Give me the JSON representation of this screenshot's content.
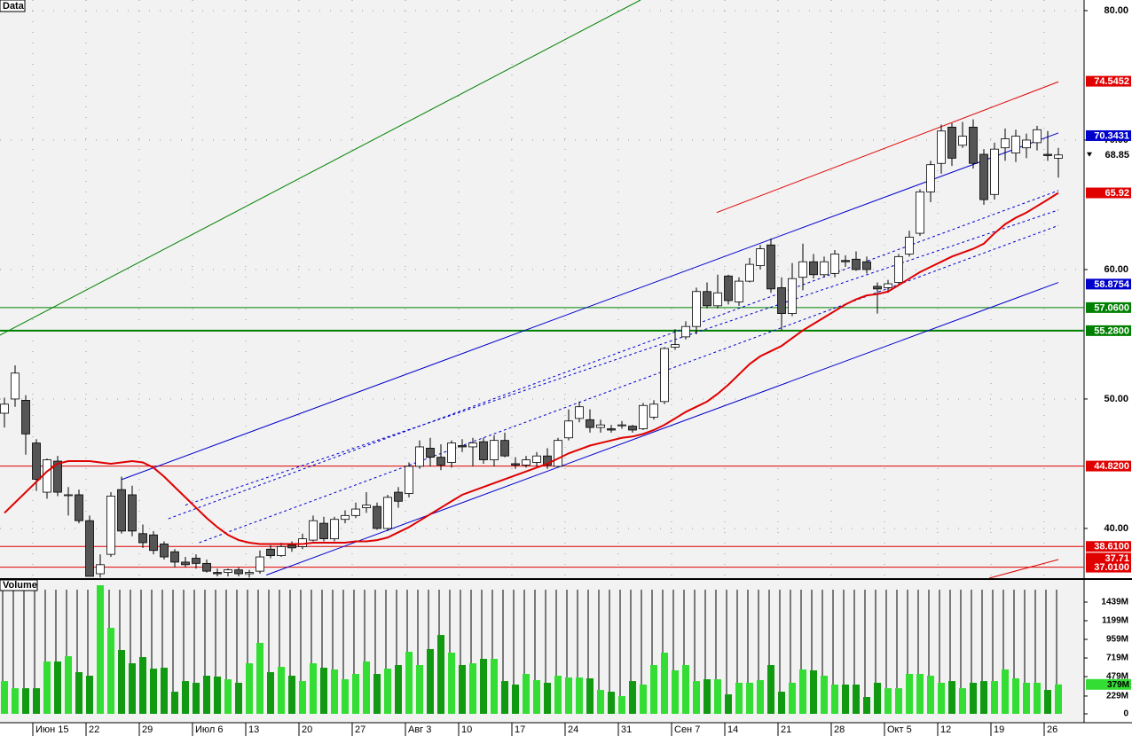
{
  "chart_data": {
    "type": "candlestick",
    "title": "Data",
    "volume_title": "Volume",
    "categories": [
      null,
      null,
      null,
      "Июн 15",
      null,
      null,
      null,
      null,
      "22",
      null,
      null,
      null,
      null,
      "29",
      null,
      null,
      null,
      null,
      "Июл 6",
      null,
      null,
      null,
      null,
      "13",
      null,
      null,
      null,
      null,
      "20",
      null,
      null,
      null,
      null,
      "27",
      null,
      null,
      null,
      null,
      "Авг 3",
      null,
      null,
      null,
      null,
      "10",
      null,
      null,
      null,
      null,
      "17",
      null,
      null,
      null,
      null,
      "24",
      null,
      null,
      null,
      null,
      "31",
      null,
      null,
      null,
      null,
      "Сен 7",
      null,
      null,
      null,
      null,
      "14",
      null,
      null,
      null,
      null,
      "21",
      null,
      null,
      null,
      null,
      "28",
      null,
      null,
      null,
      null,
      "Окт 5",
      null,
      null,
      null,
      null,
      "12",
      null,
      null,
      null,
      null,
      "19",
      null,
      null,
      null,
      null,
      "26",
      null
    ],
    "ohlc": [
      [
        48.9,
        50.1,
        47.8,
        49.6
      ],
      [
        50.0,
        52.6,
        49.4,
        52.0
      ],
      [
        49.9,
        50.3,
        45.7,
        47.3
      ],
      [
        46.6,
        46.9,
        42.9,
        43.8
      ],
      [
        42.8,
        45.4,
        42.3,
        45.3
      ],
      [
        45.2,
        45.6,
        42.5,
        42.8
      ],
      [
        42.6,
        43.2,
        41.0,
        42.6
      ],
      [
        42.6,
        43.0,
        40.4,
        40.6
      ],
      [
        40.6,
        41.0,
        36.3,
        36.3
      ],
      [
        36.5,
        38.0,
        36.2,
        37.2
      ],
      [
        38.0,
        42.8,
        37.8,
        42.5
      ],
      [
        43.0,
        44.0,
        39.6,
        39.8
      ],
      [
        42.6,
        43.3,
        39.4,
        39.8
      ],
      [
        39.6,
        40.3,
        38.5,
        38.9
      ],
      [
        39.5,
        39.8,
        38.0,
        38.3
      ],
      [
        38.8,
        39.0,
        37.6,
        37.8
      ],
      [
        38.2,
        38.4,
        37.0,
        37.4
      ],
      [
        37.4,
        37.8,
        37.0,
        37.2
      ],
      [
        37.7,
        38.0,
        36.9,
        37.3
      ],
      [
        37.3,
        37.6,
        36.6,
        36.7
      ],
      [
        36.6,
        36.9,
        36.3,
        36.5
      ],
      [
        36.6,
        36.9,
        36.3,
        36.8
      ],
      [
        36.8,
        37.0,
        36.3,
        36.5
      ],
      [
        36.5,
        36.8,
        36.2,
        36.6
      ],
      [
        36.7,
        38.3,
        36.5,
        37.8
      ],
      [
        38.4,
        38.7,
        37.7,
        37.9
      ],
      [
        37.9,
        38.9,
        37.8,
        38.6
      ],
      [
        38.7,
        39.0,
        38.2,
        38.5
      ],
      [
        38.6,
        39.6,
        38.4,
        39.2
      ],
      [
        39.1,
        41.0,
        39.0,
        40.6
      ],
      [
        40.4,
        40.9,
        39.0,
        39.2
      ],
      [
        39.2,
        40.9,
        39.0,
        40.7
      ],
      [
        40.7,
        41.4,
        40.4,
        41.0
      ],
      [
        41.0,
        42.0,
        40.8,
        41.5
      ],
      [
        41.6,
        42.8,
        41.2,
        41.8
      ],
      [
        41.7,
        42.0,
        39.9,
        40.0
      ],
      [
        40.0,
        42.6,
        39.8,
        42.4
      ],
      [
        42.8,
        43.2,
        41.6,
        42.1
      ],
      [
        42.7,
        45.1,
        42.4,
        44.8
      ],
      [
        44.8,
        46.8,
        44.6,
        46.3
      ],
      [
        46.2,
        47.0,
        44.8,
        45.5
      ],
      [
        45.5,
        46.5,
        44.5,
        44.9
      ],
      [
        45.1,
        46.8,
        44.7,
        46.6
      ],
      [
        46.4,
        46.9,
        45.9,
        46.3
      ],
      [
        46.3,
        47.0,
        44.8,
        46.6
      ],
      [
        46.7,
        47.0,
        45.0,
        45.3
      ],
      [
        45.3,
        47.2,
        44.8,
        46.8
      ],
      [
        46.8,
        47.4,
        45.5,
        45.6
      ],
      [
        45.0,
        45.5,
        44.6,
        44.9
      ],
      [
        44.9,
        45.6,
        44.7,
        45.3
      ],
      [
        45.1,
        45.9,
        44.8,
        45.6
      ],
      [
        45.6,
        46.2,
        44.6,
        44.9
      ],
      [
        44.8,
        47.0,
        44.7,
        46.8
      ],
      [
        47.0,
        49.2,
        46.8,
        48.3
      ],
      [
        48.5,
        49.8,
        48.2,
        49.4
      ],
      [
        48.4,
        49.2,
        47.4,
        47.8
      ],
      [
        47.8,
        48.4,
        47.4,
        48.0
      ],
      [
        47.7,
        48.0,
        47.4,
        47.6
      ],
      [
        48.0,
        48.3,
        47.7,
        48.0
      ],
      [
        47.9,
        48.0,
        47.4,
        47.6
      ],
      [
        47.7,
        49.7,
        47.6,
        49.5
      ],
      [
        48.6,
        49.9,
        48.4,
        49.6
      ],
      [
        49.8,
        54.0,
        49.6,
        53.9
      ],
      [
        54.0,
        55.4,
        53.8,
        54.2
      ],
      [
        54.8,
        56.0,
        54.6,
        55.6
      ],
      [
        55.6,
        58.6,
        55.0,
        58.3
      ],
      [
        58.3,
        59.0,
        57.0,
        57.2
      ],
      [
        57.2,
        59.6,
        57.0,
        58.2
      ],
      [
        59.5,
        59.6,
        57.3,
        57.6
      ],
      [
        57.5,
        59.4,
        57.2,
        59.1
      ],
      [
        59.1,
        60.9,
        59.0,
        60.4
      ],
      [
        60.3,
        61.9,
        60.0,
        61.6
      ],
      [
        61.9,
        62.4,
        58.2,
        58.5
      ],
      [
        58.6,
        59.4,
        55.3,
        56.6
      ],
      [
        56.6,
        60.5,
        56.4,
        59.3
      ],
      [
        59.4,
        62.0,
        58.4,
        60.6
      ],
      [
        60.6,
        61.2,
        59.3,
        59.6
      ],
      [
        59.6,
        61.0,
        59.4,
        60.6
      ],
      [
        59.7,
        61.5,
        59.4,
        61.2
      ],
      [
        60.7,
        61.1,
        60.2,
        60.6
      ],
      [
        60.8,
        61.4,
        59.9,
        60.0
      ],
      [
        60.6,
        61.0,
        59.7,
        60.0
      ],
      [
        58.7,
        59.0,
        56.6,
        58.5
      ],
      [
        58.6,
        59.2,
        58.2,
        58.9
      ],
      [
        59.0,
        61.2,
        58.8,
        61.0
      ],
      [
        61.2,
        63.0,
        61.0,
        62.5
      ],
      [
        62.8,
        66.2,
        62.6,
        66.0
      ],
      [
        66.0,
        68.4,
        65.2,
        68.1
      ],
      [
        68.2,
        71.2,
        67.4,
        70.7
      ],
      [
        71.0,
        71.3,
        68.0,
        68.6
      ],
      [
        69.6,
        71.4,
        69.4,
        70.3
      ],
      [
        71.0,
        71.6,
        67.8,
        68.2
      ],
      [
        68.9,
        69.3,
        65.0,
        65.4
      ],
      [
        65.8,
        69.8,
        65.4,
        69.3
      ],
      [
        69.4,
        70.9,
        68.4,
        70.1
      ],
      [
        69.0,
        70.8,
        68.3,
        70.3
      ],
      [
        69.4,
        70.5,
        68.6,
        70.0
      ],
      [
        69.8,
        71.1,
        69.2,
        70.8
      ],
      [
        68.9,
        70.7,
        68.4,
        68.8
      ],
      [
        68.6,
        69.4,
        67.1,
        68.85
      ]
    ],
    "up_color": "#ffffff",
    "down_color": "#555555",
    "ylim": [
      36.16,
      80.82
    ],
    "yticks": [
      {
        "value": 80,
        "label": "80.00"
      },
      {
        "value": 70,
        "label": "70.00"
      },
      {
        "value": 60,
        "label": "60.00"
      },
      {
        "value": 50,
        "label": "50.00"
      },
      {
        "value": 40,
        "label": "40.00"
      }
    ],
    "grid": true,
    "ma": {
      "color": "#e00000",
      "values": [
        41.2,
        42.0,
        42.8,
        43.6,
        44.4,
        45.0,
        45.2,
        45.2,
        45.2,
        45.1,
        45.0,
        45.1,
        45.2,
        45.1,
        44.7,
        44.0,
        43.2,
        42.4,
        41.6,
        40.8,
        40.1,
        39.5,
        39.1,
        38.9,
        38.8,
        38.8,
        38.8,
        38.8,
        38.8,
        38.9,
        38.9,
        38.9,
        38.9,
        39.0,
        39.0,
        39.1,
        39.3,
        39.7,
        40.1,
        40.6,
        41.1,
        41.6,
        42.1,
        42.6,
        42.9,
        43.2,
        43.5,
        43.8,
        44.1,
        44.4,
        44.7,
        45.0,
        45.4,
        45.8,
        46.1,
        46.4,
        46.6,
        46.8,
        47.0,
        47.1,
        47.3,
        47.6,
        48.0,
        48.5,
        49.0,
        49.4,
        49.8,
        50.4,
        51.1,
        51.9,
        52.7,
        53.3,
        53.7,
        54.1,
        54.7,
        55.3,
        55.8,
        56.3,
        56.8,
        57.3,
        57.7,
        58.0,
        58.1,
        58.3,
        58.8,
        59.3,
        59.8,
        60.2,
        60.6,
        61.0,
        61.3,
        61.6,
        62.0,
        62.8,
        63.5,
        64.0,
        64.4,
        64.9,
        65.4,
        65.92
      ]
    },
    "trendlines": [
      {
        "color": "#008000",
        "dashed": false,
        "points": [
          [
            -0.5,
            54.9
          ],
          [
            59.75,
            80.82
          ]
        ]
      },
      {
        "color": "#0000cc",
        "dashed": false,
        "points": [
          [
            11,
            43.77
          ],
          [
            99,
            70.55
          ]
        ]
      },
      {
        "color": "#0000cc",
        "dashed": false,
        "points": [
          [
            24.6,
            36.4
          ],
          [
            99,
            59.0
          ]
        ]
      },
      {
        "color": "#0000cc",
        "dashed": true,
        "points": [
          [
            15.4,
            40.75
          ],
          [
            99,
            66.1
          ]
        ]
      },
      {
        "color": "#0000cc",
        "dashed": true,
        "points": [
          [
            17,
            41.8
          ],
          [
            99,
            64.6
          ]
        ]
      },
      {
        "color": "#0000cc",
        "dashed": true,
        "points": [
          [
            18.3,
            38.9
          ],
          [
            99,
            63.4
          ]
        ]
      },
      {
        "color": "#e00000",
        "dashed": false,
        "points": [
          [
            66.9,
            64.4
          ],
          [
            99,
            74.5
          ]
        ]
      },
      {
        "color": "#e00000",
        "dashed": false,
        "points": [
          [
            92.5,
            36.16
          ],
          [
            99,
            37.6
          ]
        ]
      }
    ],
    "levels": [
      {
        "value": 74.5452,
        "label": "74.5452",
        "color": "#e00000",
        "horizontal": false
      },
      {
        "value": 70.3431,
        "label": "70.3431",
        "color": "#0000cc",
        "horizontal": false
      },
      {
        "value": 68.85,
        "label": "68.85",
        "color": "#ffffff",
        "horizontal": false
      },
      {
        "value": 65.92,
        "label": "65.92",
        "color": "#e00000",
        "horizontal": false
      },
      {
        "value": 58.8754,
        "label": "58.8754",
        "color": "#0000cc",
        "horizontal": false
      },
      {
        "value": 57.06,
        "label": "57.0600",
        "color": "#008000",
        "horizontal": true
      },
      {
        "value": 55.28,
        "label": "55.2800",
        "color": "#008000",
        "horizontal": true
      },
      {
        "value": 44.82,
        "label": "44.8200",
        "color": "#e00000",
        "horizontal": true
      },
      {
        "value": 38.61,
        "label": "38.6100",
        "color": "#e00000",
        "horizontal": true
      },
      {
        "value": 37.71,
        "label": "37.71",
        "color": "#e00000",
        "horizontal": false
      },
      {
        "value": 37.01,
        "label": "37.0100",
        "color": "#e00000",
        "horizontal": true
      }
    ],
    "volume": {
      "up_color": "#33dd33",
      "down_color": "#119911",
      "values": [
        422,
        330,
        330,
        330,
        674,
        674,
        742,
        537,
        491,
        1656,
        1108,
        822,
        651,
        731,
        582,
        594,
        285,
        422,
        400,
        491,
        480,
        445,
        400,
        651,
        914,
        537,
        605,
        491,
        422,
        651,
        594,
        571,
        445,
        514,
        674,
        514,
        582,
        628,
        799,
        628,
        834,
        1016,
        788,
        628,
        651,
        708,
        708,
        422,
        377,
        514,
        434,
        400,
        491,
        468,
        468,
        457,
        308,
        285,
        228,
        422,
        377,
        628,
        788,
        560,
        628,
        422,
        445,
        445,
        251,
        400,
        400,
        434,
        628,
        285,
        400,
        571,
        560,
        491,
        377,
        377,
        377,
        217,
        400,
        330,
        330,
        514,
        514,
        491,
        400,
        422,
        330,
        400,
        422,
        422,
        571,
        457,
        400,
        400,
        308,
        379
      ],
      "last_label": "379M",
      "ylim": [
        0,
        1713
      ],
      "yticks": [
        0,
        {
          "value": 229,
          "label": "229M"
        },
        {
          "value": 479,
          "label": "479M"
        },
        {
          "value": 719,
          "label": "719M"
        },
        {
          "value": 959,
          "label": "959M"
        },
        {
          "value": 1199,
          "label": "1199M"
        },
        {
          "value": 1439,
          "label": "1439M"
        }
      ]
    }
  }
}
